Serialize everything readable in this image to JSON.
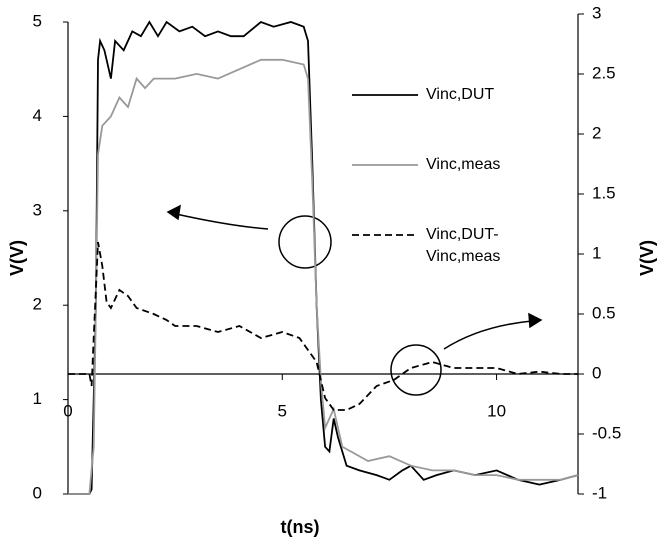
{
  "chart_data": {
    "type": "line",
    "xlabel": "t(ns)",
    "ylabel": "V(V)",
    "y2label": "V(V)",
    "xlim": [
      0,
      11.9
    ],
    "xticks": [
      0,
      5,
      10
    ],
    "ylim": [
      0,
      5
    ],
    "yticks": [
      0,
      1,
      2,
      3,
      4,
      5
    ],
    "y2lim": [
      -1,
      3
    ],
    "y2ticks": [
      {
        "value": -1,
        "label": "-1"
      },
      {
        "value": -0.5,
        "label": "-0.5"
      },
      0,
      0.5,
      1,
      1.5,
      2,
      2.5,
      3
    ],
    "grid": false,
    "series": [
      {
        "name": "Vinc,DUT",
        "color": "#000000",
        "dash": false,
        "x": [
          0,
          0.5,
          0.55,
          0.65,
          0.7,
          0.75,
          0.85,
          1.0,
          1.1,
          1.3,
          1.5,
          1.7,
          1.9,
          2.1,
          2.3,
          2.6,
          2.9,
          3.2,
          3.5,
          3.8,
          4.1,
          4.5,
          4.8,
          5.2,
          5.5,
          5.6,
          5.7,
          5.8,
          5.9,
          6.0,
          6.1,
          6.2,
          6.3,
          6.5,
          6.8,
          7.2,
          7.5,
          7.8,
          8.0,
          8.3,
          8.6,
          9.0,
          9.5,
          10.0,
          10.5,
          11.0,
          11.5,
          11.9
        ],
        "values": [
          0,
          0,
          0.05,
          2,
          4.6,
          4.8,
          4.7,
          4.4,
          4.8,
          4.7,
          4.9,
          4.85,
          5.0,
          4.85,
          5.0,
          4.9,
          4.95,
          4.85,
          4.9,
          4.85,
          4.85,
          5.0,
          4.95,
          5.0,
          4.95,
          4.8,
          3.5,
          2.0,
          1.0,
          0.5,
          0.45,
          0.8,
          0.6,
          0.3,
          0.25,
          0.2,
          0.15,
          0.25,
          0.3,
          0.15,
          0.2,
          0.25,
          0.2,
          0.25,
          0.15,
          0.1,
          0.15,
          0.2
        ]
      },
      {
        "name": "Vinc,meas",
        "color": "#999999",
        "dash": false,
        "x": [
          0,
          0.5,
          0.6,
          0.65,
          0.7,
          0.8,
          1.0,
          1.2,
          1.4,
          1.6,
          1.8,
          2.0,
          2.5,
          3.0,
          3.5,
          4.0,
          4.5,
          5.0,
          5.5,
          5.6,
          5.7,
          5.8,
          5.9,
          6.0,
          6.2,
          6.4,
          6.6,
          7.0,
          7.5,
          8.0,
          8.5,
          9.0,
          9.5,
          10.0,
          10.5,
          11.0,
          11.5,
          11.9
        ],
        "values": [
          0,
          0,
          0.5,
          2,
          3.6,
          3.9,
          4.0,
          4.2,
          4.1,
          4.4,
          4.3,
          4.4,
          4.4,
          4.45,
          4.4,
          4.5,
          4.6,
          4.6,
          4.55,
          4.4,
          3.3,
          2.0,
          1.2,
          0.7,
          0.9,
          0.5,
          0.45,
          0.35,
          0.4,
          0.3,
          0.25,
          0.25,
          0.2,
          0.2,
          0.15,
          0.15,
          0.15,
          0.2
        ]
      },
      {
        "name": "Vinc,DUT-Vinc,meas",
        "color": "#000000",
        "dash": true,
        "axis": "y2",
        "x": [
          0,
          0.5,
          0.55,
          0.6,
          0.7,
          0.8,
          0.9,
          1.0,
          1.2,
          1.4,
          1.6,
          2.0,
          2.3,
          2.5,
          3.0,
          3.5,
          4.0,
          4.5,
          5.0,
          5.4,
          5.6,
          5.8,
          6.0,
          6.2,
          6.5,
          6.8,
          7.2,
          7.6,
          8.0,
          8.5,
          9.0,
          9.5,
          10.0,
          10.5,
          11.0,
          11.5,
          11.9
        ],
        "values": [
          0,
          0,
          -0.1,
          0.3,
          1.1,
          0.9,
          0.6,
          0.55,
          0.7,
          0.65,
          0.55,
          0.5,
          0.45,
          0.4,
          0.4,
          0.35,
          0.4,
          0.3,
          0.35,
          0.3,
          0.2,
          0.1,
          -0.2,
          -0.3,
          -0.3,
          -0.25,
          -0.1,
          -0.05,
          0.05,
          0.1,
          0.05,
          0.05,
          0.05,
          0,
          0.02,
          0,
          0
        ]
      }
    ]
  }
}
